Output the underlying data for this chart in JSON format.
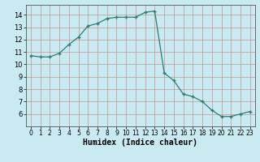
{
  "x": [
    0,
    1,
    2,
    3,
    4,
    5,
    6,
    7,
    8,
    9,
    10,
    11,
    12,
    13,
    14,
    15,
    16,
    17,
    18,
    19,
    20,
    21,
    22,
    23
  ],
  "y": [
    10.7,
    10.6,
    10.6,
    10.9,
    11.6,
    12.2,
    13.1,
    13.3,
    13.7,
    13.8,
    13.8,
    13.8,
    14.2,
    14.3,
    9.3,
    8.7,
    7.6,
    7.4,
    7.0,
    6.3,
    5.8,
    5.8,
    6.0,
    6.2
  ],
  "line_color": "#2e7d6e",
  "marker": "+",
  "marker_size": 3,
  "bg_color": "#c8eaf0",
  "grid_color": "#c08080",
  "xlabel": "Humidex (Indice chaleur)",
  "xlim": [
    -0.5,
    23.5
  ],
  "ylim": [
    5.0,
    14.8
  ],
  "yticks": [
    6,
    7,
    8,
    9,
    10,
    11,
    12,
    13,
    14
  ],
  "xticks": [
    0,
    1,
    2,
    3,
    4,
    5,
    6,
    7,
    8,
    9,
    10,
    11,
    12,
    13,
    14,
    15,
    16,
    17,
    18,
    19,
    20,
    21,
    22,
    23
  ]
}
